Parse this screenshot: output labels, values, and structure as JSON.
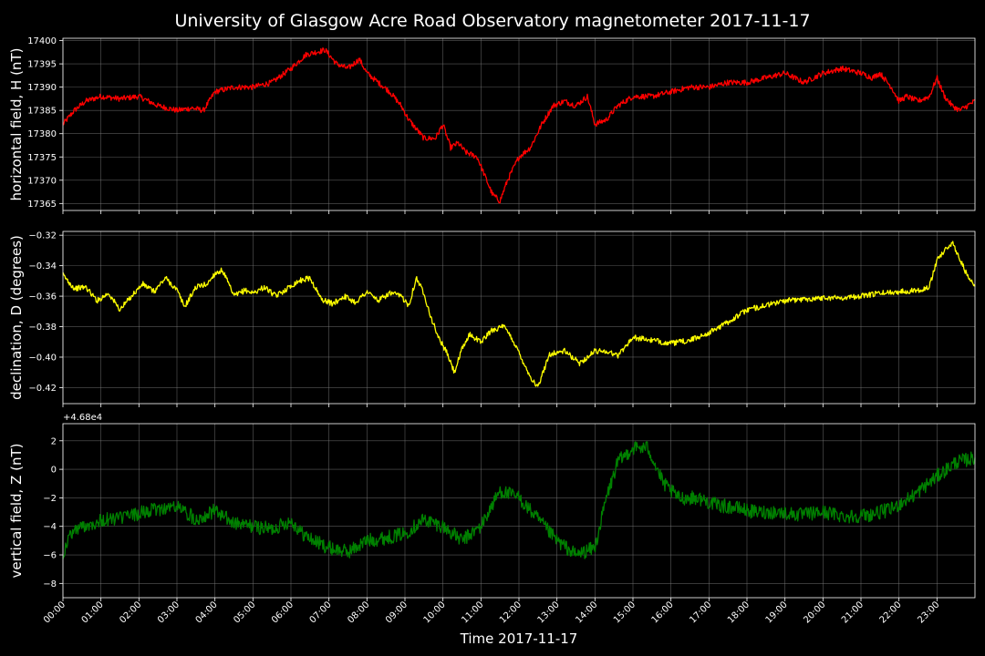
{
  "colors": {
    "background": "#000000",
    "axes": "#ffffff",
    "grid": "#808080"
  },
  "chart_data": {
    "title": "University of Glasgow Acre Road Observatory magnetometer 2017-11-17",
    "xlabel": "Time 2017-11-17",
    "x_ticks": [
      "00:00",
      "01:00",
      "02:00",
      "03:00",
      "04:00",
      "05:00",
      "06:00",
      "07:00",
      "08:00",
      "09:00",
      "10:00",
      "11:00",
      "12:00",
      "13:00",
      "14:00",
      "15:00",
      "16:00",
      "17:00",
      "18:00",
      "19:00",
      "20:00",
      "21:00",
      "22:00",
      "23:00"
    ],
    "xlim_hours": [
      0,
      24
    ],
    "grid": true,
    "panels": [
      {
        "type": "line",
        "ylabel": "horizontal field, H (nT)",
        "color": "#ff0000",
        "ylim": [
          17363.5,
          17400.5
        ],
        "y_ticks": [
          17365,
          17370,
          17375,
          17380,
          17385,
          17390,
          17395,
          17400
        ],
        "y_tick_labels": [
          "17365",
          "17370",
          "17375",
          "17380",
          "17385",
          "17390",
          "17395",
          "17400"
        ],
        "offset_text": "",
        "noise": 0.6,
        "hours": [
          0,
          0.1,
          0.3,
          0.6,
          1,
          1.5,
          2,
          2.5,
          3,
          3.4,
          3.7,
          4,
          4.5,
          5,
          5.5,
          6,
          6.4,
          6.9,
          7.2,
          7.5,
          7.8,
          8,
          8.3,
          8.6,
          8.9,
          9.1,
          9.3,
          9.5,
          9.8,
          10,
          10.2,
          10.4,
          10.6,
          10.9,
          11.1,
          11.3,
          11.5,
          11.7,
          12,
          12.3,
          12.6,
          12.9,
          13.2,
          13.5,
          13.8,
          14,
          14.3,
          14.6,
          15,
          15.5,
          16,
          16.5,
          17,
          17.5,
          18,
          18.5,
          19,
          19.5,
          20,
          20.5,
          21,
          21.3,
          21.5,
          21.8,
          22,
          22.2,
          22.5,
          22.8,
          23,
          23.2,
          23.4,
          23.6,
          23.8,
          24
        ],
        "values": [
          17382,
          17383,
          17385,
          17387,
          17388,
          17387.5,
          17388,
          17386,
          17385,
          17385.5,
          17385,
          17389,
          17390,
          17390,
          17391,
          17394,
          17397,
          17398,
          17395,
          17394,
          17396,
          17393,
          17391,
          17389,
          17386,
          17383,
          17381,
          17379,
          17379,
          17382,
          17377,
          17378,
          17376,
          17375,
          17371,
          17367,
          17365.5,
          17370,
          17375,
          17377,
          17382,
          17386,
          17387,
          17386,
          17388,
          17382,
          17383,
          17386,
          17388,
          17388,
          17389,
          17390,
          17390,
          17391,
          17391,
          17392,
          17393,
          17391,
          17393,
          17394,
          17393,
          17392,
          17393,
          17390,
          17387,
          17388,
          17387,
          17388,
          17392,
          17388,
          17386,
          17385,
          17386,
          17387
        ]
      },
      {
        "type": "line",
        "ylabel": "declination, D (degrees)",
        "color": "#ffff00",
        "ylim": [
          -0.4305,
          -0.3175
        ],
        "y_ticks": [
          -0.42,
          -0.4,
          -0.38,
          -0.36,
          -0.34,
          -0.32
        ],
        "y_tick_labels": [
          "−0.42",
          "−0.40",
          "−0.38",
          "−0.36",
          "−0.34",
          "−0.32"
        ],
        "offset_text": "",
        "noise": 0.0018,
        "hours": [
          0,
          0.3,
          0.6,
          0.9,
          1.2,
          1.5,
          1.8,
          2.1,
          2.4,
          2.7,
          3,
          3.2,
          3.5,
          3.8,
          4,
          4.2,
          4.5,
          4.8,
          5,
          5.3,
          5.6,
          5.9,
          6.2,
          6.5,
          6.8,
          7.1,
          7.4,
          7.7,
          8,
          8.3,
          8.6,
          8.9,
          9.1,
          9.3,
          9.5,
          9.7,
          9.9,
          10.1,
          10.3,
          10.5,
          10.7,
          11,
          11.3,
          11.6,
          11.8,
          12,
          12.3,
          12.5,
          12.8,
          13.2,
          13.6,
          14,
          14.3,
          14.6,
          15,
          15.5,
          16,
          16.5,
          17,
          17.5,
          18,
          18.5,
          19,
          19.5,
          20,
          20.5,
          21,
          21.5,
          22,
          22.5,
          22.8,
          23,
          23.2,
          23.4,
          23.6,
          23.8,
          24
        ],
        "values": [
          -0.346,
          -0.355,
          -0.354,
          -0.363,
          -0.358,
          -0.369,
          -0.36,
          -0.352,
          -0.357,
          -0.348,
          -0.356,
          -0.367,
          -0.354,
          -0.352,
          -0.345,
          -0.343,
          -0.36,
          -0.356,
          -0.358,
          -0.354,
          -0.36,
          -0.355,
          -0.35,
          -0.348,
          -0.362,
          -0.365,
          -0.36,
          -0.364,
          -0.357,
          -0.363,
          -0.358,
          -0.36,
          -0.366,
          -0.348,
          -0.358,
          -0.375,
          -0.388,
          -0.397,
          -0.41,
          -0.395,
          -0.385,
          -0.39,
          -0.382,
          -0.38,
          -0.387,
          -0.397,
          -0.413,
          -0.42,
          -0.398,
          -0.396,
          -0.404,
          -0.396,
          -0.396,
          -0.399,
          -0.387,
          -0.389,
          -0.391,
          -0.389,
          -0.384,
          -0.377,
          -0.369,
          -0.366,
          -0.363,
          -0.362,
          -0.361,
          -0.361,
          -0.36,
          -0.358,
          -0.357,
          -0.356,
          -0.354,
          -0.336,
          -0.33,
          -0.325,
          -0.335,
          -0.347,
          -0.354
        ]
      },
      {
        "type": "line",
        "ylabel": "vertical field, Z (nT)",
        "color": "#008000",
        "ylim": [
          -9,
          3.2
        ],
        "y_ticks": [
          -8,
          -6,
          -4,
          -2,
          0,
          2
        ],
        "y_tick_labels": [
          "−8",
          "−6",
          "−4",
          "−2",
          "0",
          "2"
        ],
        "offset_text": "+4.68e4",
        "noise": 0.5,
        "hours": [
          0,
          0.2,
          0.5,
          1,
          1.5,
          2,
          2.5,
          3,
          3.5,
          4,
          4.5,
          5,
          5.5,
          6,
          6.3,
          6.6,
          7,
          7.5,
          8,
          8.5,
          9,
          9.5,
          10,
          10.5,
          11,
          11.5,
          12,
          12.5,
          13,
          13.5,
          14,
          14.3,
          14.6,
          15,
          15.4,
          15.8,
          16.2,
          16.7,
          17.2,
          17.7,
          18.2,
          18.8,
          19.4,
          20,
          20.6,
          21.2,
          21.8,
          22.4,
          23,
          23.5,
          24
        ],
        "values": [
          -6.0,
          -4.5,
          -4.0,
          -3.6,
          -3.4,
          -3.1,
          -2.8,
          -2.6,
          -3.5,
          -2.9,
          -3.8,
          -4.0,
          -4.2,
          -3.6,
          -4.5,
          -5.0,
          -5.5,
          -5.8,
          -5.0,
          -4.8,
          -4.5,
          -3.5,
          -4.0,
          -5.0,
          -4.0,
          -1.5,
          -2.0,
          -3.5,
          -5.0,
          -6.0,
          -5.5,
          -2.0,
          0.5,
          1.5,
          1.5,
          -1.0,
          -2.0,
          -2.0,
          -2.5,
          -2.7,
          -3.0,
          -3.0,
          -3.2,
          -3.0,
          -3.3,
          -3.2,
          -2.8,
          -1.8,
          -0.5,
          0.5,
          0.8
        ]
      }
    ]
  }
}
